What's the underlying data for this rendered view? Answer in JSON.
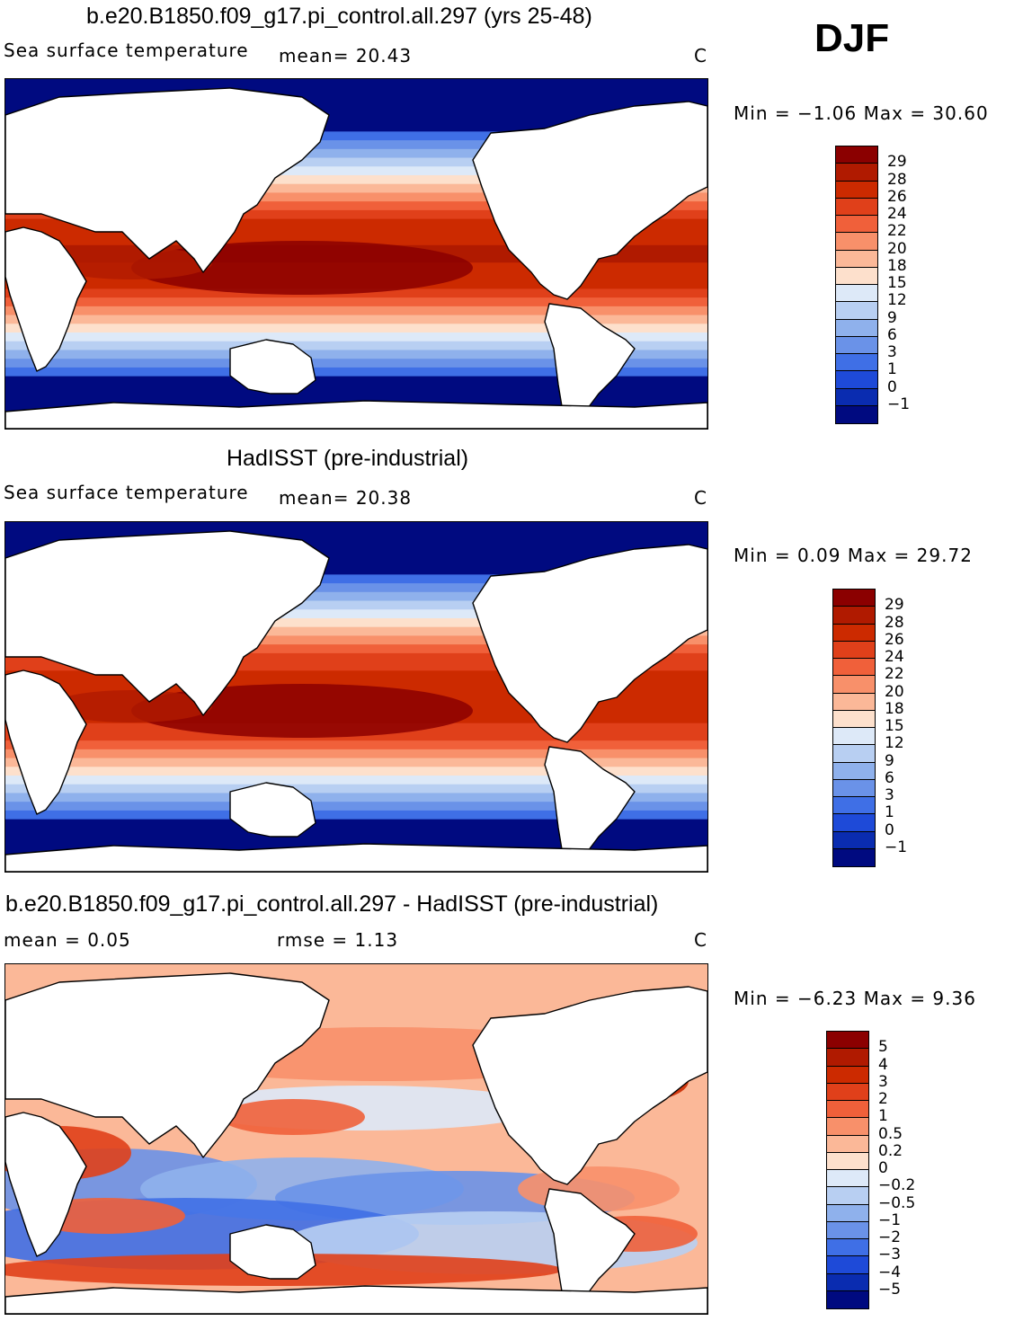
{
  "season": "DJF",
  "panels": [
    {
      "title": "b.e20.B1850.f09_g17.pi_control.all.297 (yrs 25-48)",
      "left_label": "Sea surface temperature",
      "stat1": "mean=   20.43",
      "stat2": "",
      "units": "C",
      "minmax": "Min =   −1.06  Max =   30.60"
    },
    {
      "title": "HadISST (pre-industrial)",
      "left_label": "Sea surface temperature",
      "stat1": "mean=   20.38",
      "stat2": "",
      "units": "C",
      "minmax": "Min =    0.09  Max =   29.72"
    },
    {
      "title": "b.e20.B1850.f09_g17.pi_control.all.297 - HadISST (pre-industrial)",
      "left_label": "mean =    0.05",
      "stat1": "",
      "stat2": "rmse =    1.13",
      "units": "C",
      "minmax": "Min =   −6.23  Max =    9.36"
    }
  ],
  "colorbar_sst": {
    "labels": [
      "29",
      "28",
      "26",
      "24",
      "22",
      "20",
      "18",
      "15",
      "12",
      "9",
      "6",
      "3",
      "1",
      "0",
      "−1"
    ],
    "colors": [
      "#8b0000",
      "#b01a00",
      "#cc2a00",
      "#e0401a",
      "#f0603a",
      "#f8906a",
      "#fbb898",
      "#fde0cc",
      "#dde9f8",
      "#b8cff2",
      "#8fb1ec",
      "#6a92e8",
      "#3f6fe6",
      "#1e4ad8",
      "#0a2cb0",
      "#000a80"
    ]
  },
  "colorbar_diff": {
    "labels": [
      "5",
      "4",
      "3",
      "2",
      "1",
      "0.5",
      "0.2",
      "0",
      "−0.2",
      "−0.5",
      "−1",
      "−2",
      "−3",
      "−4",
      "−5"
    ],
    "colors": [
      "#8b0000",
      "#b01a00",
      "#cc2a00",
      "#e0401a",
      "#f0603a",
      "#f8906a",
      "#fbb898",
      "#fde0cc",
      "#dde9f8",
      "#b8cff2",
      "#8fb1ec",
      "#6a92e8",
      "#3f6fe6",
      "#1e4ad8",
      "#0a2cb0",
      "#000a80"
    ]
  }
}
